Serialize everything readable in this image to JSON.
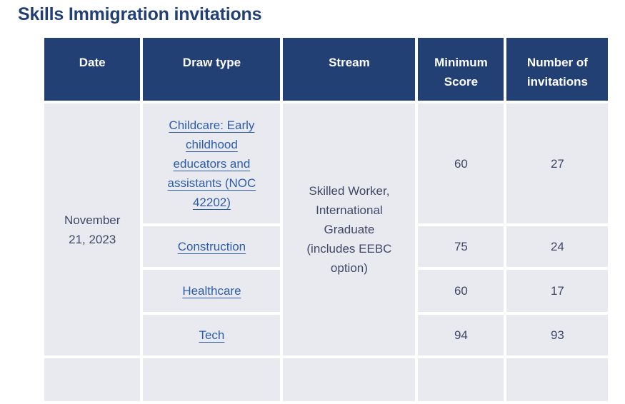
{
  "page": {
    "title": "Skills Immigration invitations"
  },
  "colors": {
    "title_text": "#234075",
    "header_bg": "#234075",
    "header_text": "#ffffff",
    "cell_bg": "#e9eaf0",
    "body_text": "#414766",
    "link_text": "#2d5da9"
  },
  "table": {
    "columns": [
      "Date",
      "Draw type",
      "Stream",
      "Minimum Score",
      "Number of invitations"
    ],
    "date": "November 21, 2023",
    "stream": "Skilled Worker, International Graduate (includes EEBC option)",
    "rows": [
      {
        "draw_type": "Childcare: Early childhood educators and assistants (NOC 42202)",
        "minimum_score": "60",
        "invitations": "27"
      },
      {
        "draw_type": "Construction",
        "minimum_score": "75",
        "invitations": "24"
      },
      {
        "draw_type": "Healthcare",
        "minimum_score": "60",
        "invitations": "17"
      },
      {
        "draw_type": "Tech",
        "minimum_score": "94",
        "invitations": "93"
      }
    ]
  }
}
